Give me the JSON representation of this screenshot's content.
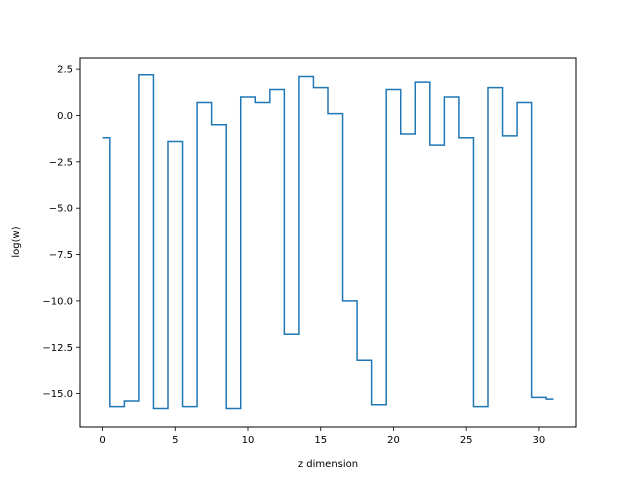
{
  "chart_data": {
    "type": "line",
    "step": "mid",
    "title": "",
    "xlabel": "z dimension",
    "ylabel": "log(w)",
    "xlim": [
      -1.55,
      32.55
    ],
    "ylim": [
      -16.8,
      3.1
    ],
    "xticks": [
      0,
      5,
      10,
      15,
      20,
      25,
      30
    ],
    "xtick_labels": [
      "0",
      "5",
      "10",
      "15",
      "20",
      "25",
      "30"
    ],
    "yticks": [
      2.5,
      0.0,
      -2.5,
      -5.0,
      -7.5,
      -10.0,
      -12.5,
      -15.0
    ],
    "ytick_labels": [
      "2.5",
      "0.0",
      "−2.5",
      "−5.0",
      "−7.5",
      "−10.0",
      "−12.5",
      "−15.0"
    ],
    "grid": false,
    "series": [
      {
        "color": "#1f77b4",
        "x": [
          0,
          1,
          2,
          3,
          4,
          5,
          6,
          7,
          8,
          9,
          10,
          11,
          12,
          13,
          14,
          15,
          16,
          17,
          18,
          19,
          20,
          21,
          22,
          23,
          24,
          25,
          26,
          27,
          28,
          29,
          30,
          31
        ],
        "values": [
          -1.2,
          -15.7,
          -15.4,
          2.2,
          -15.8,
          -1.4,
          -15.7,
          0.7,
          -0.5,
          -15.8,
          1.0,
          0.7,
          1.4,
          -11.8,
          2.1,
          1.5,
          0.1,
          -10.0,
          -13.2,
          -15.6,
          1.4,
          -1.0,
          1.8,
          -1.6,
          1.0,
          -1.2,
          -15.7,
          1.5,
          -1.1,
          0.7,
          -15.2,
          -15.3
        ]
      }
    ]
  }
}
